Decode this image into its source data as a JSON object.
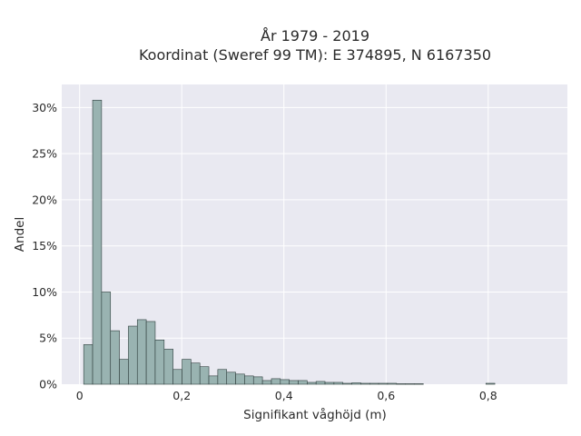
{
  "chart_data": {
    "type": "bar",
    "title_lines": [
      "År 1979 - 2019",
      "Koordinat (Sweref 99 TM): E 374895, N 6167350"
    ],
    "xlabel": "Signifikant våghöjd (m)",
    "ylabel": "Andel",
    "xlim": [
      -0.035,
      0.955
    ],
    "ylim": [
      0,
      0.325
    ],
    "xticks": [
      {
        "value": 0,
        "label": "0"
      },
      {
        "value": 0.2,
        "label": "0,2"
      },
      {
        "value": 0.4,
        "label": "0,4"
      },
      {
        "value": 0.6,
        "label": "0,6"
      },
      {
        "value": 0.8,
        "label": "0,8"
      }
    ],
    "yticks": [
      {
        "value": 0,
        "label": "0%"
      },
      {
        "value": 0.05,
        "label": "5%"
      },
      {
        "value": 0.1,
        "label": "10%"
      },
      {
        "value": 0.15,
        "label": "15%"
      },
      {
        "value": 0.2,
        "label": "20%"
      },
      {
        "value": 0.25,
        "label": "25%"
      },
      {
        "value": 0.3,
        "label": "30%"
      }
    ],
    "bin_width": 0.0175,
    "bin_start": 0.008,
    "values": [
      0.043,
      0.308,
      0.1,
      0.058,
      0.027,
      0.063,
      0.07,
      0.068,
      0.048,
      0.038,
      0.016,
      0.027,
      0.023,
      0.019,
      0.009,
      0.016,
      0.013,
      0.011,
      0.009,
      0.008,
      0.004,
      0.006,
      0.005,
      0.004,
      0.004,
      0.002,
      0.003,
      0.002,
      0.002,
      0.001,
      0.0015,
      0.001,
      0.001,
      0.001,
      0.001,
      0.0005,
      0.0005,
      0.0005,
      0,
      0,
      0,
      0,
      0,
      0,
      0,
      0.001
    ],
    "colors": {
      "bar_fill": "#99b3b1",
      "bar_edge": "#2f3e3d",
      "plot_bg": "#e9e9f1",
      "grid": "#ffffff"
    },
    "grid": true
  }
}
